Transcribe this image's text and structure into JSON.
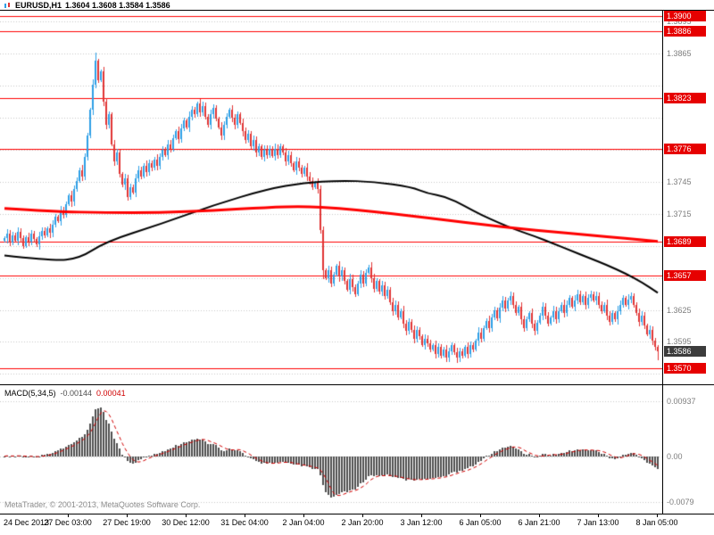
{
  "title": {
    "symbol": "EURUSD,H1",
    "quote": "1.3604 1.3608 1.3584 1.3586"
  },
  "indicator": {
    "label": "MACD(5,34,5)",
    "value_main": "-0.00144",
    "value_signal": "0.00041"
  },
  "watermark": "MetaTrader, © 2001-2013, MetaQuotes Software Corp.",
  "colors": {
    "bull": "#2e9fe6",
    "bear": "#e03535",
    "level_line": "#ff0000",
    "ma_red": "#ff0000",
    "ma_black": "#000000",
    "histogram": "#4f4f4f",
    "signal": "#d00000",
    "grid": "#c8c8c8",
    "axis_text": "#7d7d7d",
    "label_box_bg": "#e60000",
    "label_box_text": "#ffffff",
    "current_box_bg": "#3c3c3c"
  },
  "chart_data": {
    "type": "candlestick",
    "symbol": "EURUSD",
    "timeframe": "H1",
    "quote_ohlc": {
      "open": "1.3604",
      "high": "1.3608",
      "low": "1.3584",
      "close": "1.3586"
    },
    "x_labels": [
      "24 Dec 2013",
      "27 Dec 03:00",
      "27 Dec 19:00",
      "30 Dec 12:00",
      "31 Dec 04:00",
      "2 Jan 04:00",
      "2 Jan 20:00",
      "3 Jan 12:00",
      "6 Jan 05:00",
      "6 Jan 21:00",
      "7 Jan 13:00",
      "8 Jan 05:00"
    ],
    "main": {
      "ylim": [
        1.3557,
        1.3905
      ],
      "grid_levels": [
        1.3895,
        1.3865,
        1.3835,
        1.3805,
        1.3775,
        1.3745,
        1.3715,
        1.3685,
        1.3655,
        1.3625,
        1.3595,
        1.3565
      ],
      "axis_ticks": [
        1.3895,
        1.3865,
        1.3745,
        1.3715,
        1.3625,
        1.3595
      ],
      "level_lines": [
        1.39,
        1.3886,
        1.3823,
        1.3776,
        1.3689,
        1.3657,
        1.357
      ],
      "current_price": 1.3586,
      "first_open": 1.369,
      "closes": [
        1.3692,
        1.3696,
        1.3688,
        1.3695,
        1.369,
        1.3698,
        1.3692,
        1.3685,
        1.3693,
        1.3689,
        1.3696,
        1.3691,
        1.3686,
        1.3694,
        1.3699,
        1.3695,
        1.3701,
        1.3697,
        1.3705,
        1.3712,
        1.3708,
        1.3718,
        1.3714,
        1.3724,
        1.3732,
        1.3726,
        1.3738,
        1.3746,
        1.3756,
        1.375,
        1.3768,
        1.3788,
        1.3812,
        1.3836,
        1.3858,
        1.384,
        1.3848,
        1.382,
        1.3798,
        1.3808,
        1.378,
        1.3764,
        1.3772,
        1.3752,
        1.3742,
        1.3748,
        1.3731,
        1.374,
        1.3735,
        1.3748,
        1.3756,
        1.375,
        1.376,
        1.3754,
        1.3762,
        1.3758,
        1.3766,
        1.376,
        1.3768,
        1.3775,
        1.377,
        1.378,
        1.3776,
        1.3786,
        1.3792,
        1.3785,
        1.3795,
        1.3802,
        1.3796,
        1.3806,
        1.3812,
        1.3808,
        1.3818,
        1.381,
        1.3816,
        1.3806,
        1.3798,
        1.3808,
        1.3814,
        1.3804,
        1.3796,
        1.3788,
        1.3798,
        1.3806,
        1.3812,
        1.3805,
        1.3798,
        1.3808,
        1.38,
        1.3792,
        1.3784,
        1.379,
        1.3778,
        1.3784,
        1.3772,
        1.3778,
        1.3768,
        1.3775,
        1.377,
        1.3776,
        1.3769,
        1.3776,
        1.377,
        1.3778,
        1.3772,
        1.3764,
        1.377,
        1.3762,
        1.3756,
        1.3764,
        1.3758,
        1.3752,
        1.3758,
        1.375,
        1.3746,
        1.374,
        1.3744,
        1.3738,
        1.37,
        1.3662,
        1.3655,
        1.3662,
        1.365,
        1.3658,
        1.3666,
        1.3656,
        1.3662,
        1.3652,
        1.3644,
        1.3654,
        1.3646,
        1.364,
        1.365,
        1.3658,
        1.365,
        1.366,
        1.3665,
        1.3655,
        1.3645,
        1.3652,
        1.3642,
        1.3648,
        1.3638,
        1.3644,
        1.3632,
        1.3624,
        1.363,
        1.3618,
        1.3624,
        1.3612,
        1.3605,
        1.3614,
        1.3606,
        1.3598,
        1.3606,
        1.36,
        1.3592,
        1.3598,
        1.3594,
        1.3588,
        1.3592,
        1.3584,
        1.359,
        1.3582,
        1.3588,
        1.358,
        1.3586,
        1.3592,
        1.3585,
        1.358,
        1.3586,
        1.3582,
        1.359,
        1.3584,
        1.3592,
        1.3588,
        1.3596,
        1.3604,
        1.3598,
        1.3608,
        1.3615,
        1.3608,
        1.3618,
        1.3625,
        1.3617,
        1.3627,
        1.3634,
        1.3626,
        1.3634,
        1.3638,
        1.363,
        1.3622,
        1.3628,
        1.3616,
        1.3608,
        1.3616,
        1.3622,
        1.3612,
        1.3605,
        1.3613,
        1.362,
        1.3628,
        1.362,
        1.3612,
        1.3618,
        1.3624,
        1.3616,
        1.3624,
        1.363,
        1.3622,
        1.363,
        1.3636,
        1.3628,
        1.3634,
        1.364,
        1.3632,
        1.3638,
        1.363,
        1.3636,
        1.364,
        1.3634,
        1.3638,
        1.363,
        1.3624,
        1.363,
        1.362,
        1.3614,
        1.3622,
        1.3616,
        1.3624,
        1.363,
        1.3636,
        1.363,
        1.3635,
        1.3638,
        1.363,
        1.3622,
        1.3614,
        1.362,
        1.361,
        1.3602,
        1.3606,
        1.3596,
        1.359,
        1.3586
      ],
      "wick_overrides": {
        "34": {
          "h": 1.3866
        },
        "35": {
          "h": 1.386
        },
        "119": {
          "l": 1.3654
        },
        "165": {
          "l": 1.3576
        },
        "244": {
          "l": 1.3578
        }
      },
      "ma_red": [
        [
          0,
          1.372
        ],
        [
          18,
          1.3717
        ],
        [
          38,
          1.3716
        ],
        [
          58,
          1.3716
        ],
        [
          78,
          1.3718
        ],
        [
          98,
          1.3721
        ],
        [
          112,
          1.3722
        ],
        [
          125,
          1.372
        ],
        [
          138,
          1.3717
        ],
        [
          152,
          1.3713
        ],
        [
          165,
          1.3709
        ],
        [
          178,
          1.3705
        ],
        [
          192,
          1.3701
        ],
        [
          205,
          1.3698
        ],
        [
          218,
          1.3695
        ],
        [
          232,
          1.3692
        ],
        [
          244,
          1.3689
        ]
      ],
      "ma_black": [
        [
          0,
          1.3676
        ],
        [
          18,
          1.3671
        ],
        [
          28,
          1.3673
        ],
        [
          38,
          1.3689
        ],
        [
          58,
          1.3705
        ],
        [
          78,
          1.3723
        ],
        [
          98,
          1.3738
        ],
        [
          112,
          1.3744
        ],
        [
          125,
          1.3746
        ],
        [
          138,
          1.3745
        ],
        [
          152,
          1.374
        ],
        [
          158,
          1.3734
        ],
        [
          165,
          1.3731
        ],
        [
          172,
          1.3722
        ],
        [
          178,
          1.3714
        ],
        [
          185,
          1.3706
        ],
        [
          192,
          1.3699
        ],
        [
          198,
          1.3694
        ],
        [
          205,
          1.3687
        ],
        [
          212,
          1.368
        ],
        [
          218,
          1.3674
        ],
        [
          225,
          1.3667
        ],
        [
          232,
          1.3659
        ],
        [
          238,
          1.3651
        ],
        [
          244,
          1.3641
        ]
      ]
    },
    "macd": {
      "params": [
        5,
        34,
        5
      ],
      "ylim": [
        -0.0095,
        0.0118
      ],
      "axis_ticks": [
        {
          "v": 0.00937,
          "label": "0.00937"
        },
        {
          "v": 0,
          "label": "0.00"
        },
        {
          "v": -0.0079,
          "label": "-0.0079"
        }
      ]
    }
  }
}
